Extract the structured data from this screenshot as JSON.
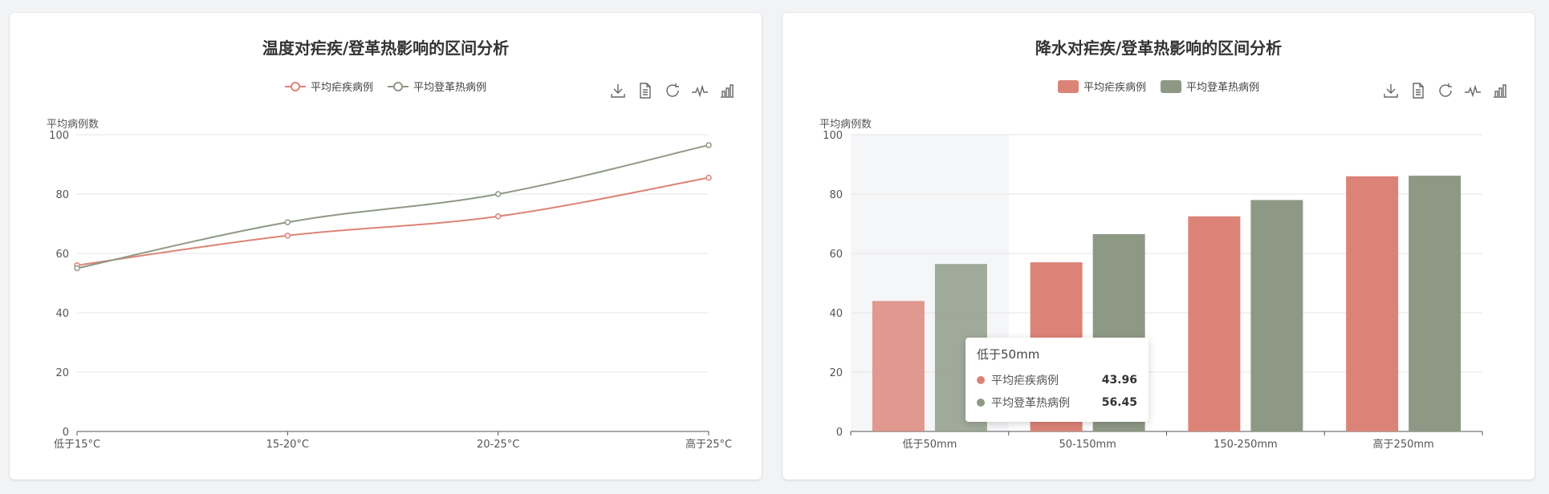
{
  "colors": {
    "malaria": "#dc8378",
    "dengue": "#8e9985"
  },
  "chart_data": [
    {
      "type": "line",
      "title": "温度对疟疾/登革热影响的区间分析",
      "ylabel": "平均病例数",
      "categories": [
        "低于15°C",
        "15-20°C",
        "20-25°C",
        "高于25°C"
      ],
      "ylim": [
        0,
        100
      ],
      "yticks": [
        0,
        20,
        40,
        60,
        80,
        100
      ],
      "grid": true,
      "legend": "top-center",
      "series": [
        {
          "name": "平均疟疾病例",
          "values": [
            56,
            66,
            72.5,
            85.5
          ]
        },
        {
          "name": "平均登革热病例",
          "values": [
            55,
            70.5,
            80,
            96.5
          ]
        }
      ]
    },
    {
      "type": "bar",
      "title": "降水对疟疾/登革热影响的区间分析",
      "ylabel": "平均病例数",
      "categories": [
        "低于50mm",
        "50-150mm",
        "150-250mm",
        "高于250mm"
      ],
      "ylim": [
        0,
        100
      ],
      "yticks": [
        0,
        20,
        40,
        60,
        80,
        100
      ],
      "grid": true,
      "legend": "top-center",
      "series": [
        {
          "name": "平均疟疾病例",
          "values": [
            43.96,
            57,
            72.5,
            86
          ]
        },
        {
          "name": "平均登革热病例",
          "values": [
            56.45,
            66.5,
            78,
            86.2
          ]
        }
      ]
    }
  ],
  "tooltip": {
    "title": "低于50mm",
    "rows": [
      {
        "name": "平均疟疾病例",
        "value": "43.96"
      },
      {
        "name": "平均登革热病例",
        "value": "56.45"
      }
    ]
  }
}
